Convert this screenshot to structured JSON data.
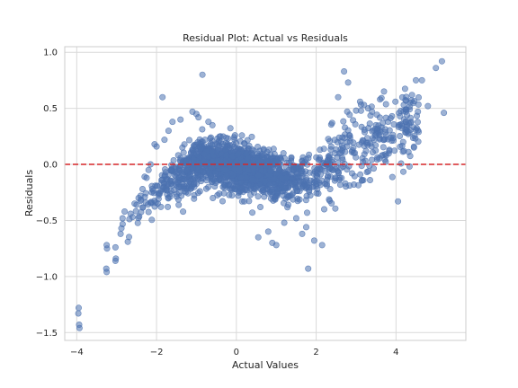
{
  "chart_data": {
    "type": "scatter",
    "title": "Residual Plot: Actual vs Residuals",
    "xlabel": "Actual Values",
    "ylabel": "Residuals",
    "xlim": [
      -4.3,
      5.75
    ],
    "ylim": [
      -1.57,
      1.05
    ],
    "xticks": [
      -4,
      -2,
      0,
      2,
      4
    ],
    "yticks": [
      -1.5,
      -1.0,
      -0.5,
      0.0,
      0.5,
      1.0
    ],
    "xtick_labels": [
      "−4",
      "−2",
      "0",
      "2",
      "4"
    ],
    "ytick_labels": [
      "−1.5",
      "−1.0",
      "−0.5",
      "0.0",
      "0.5",
      "1.0"
    ],
    "grid": true,
    "reference_line": {
      "y": 0.0,
      "style": "dashed",
      "color": "#d62728"
    },
    "point_color": "#4c72b0",
    "point_opacity": 0.55,
    "point_count_approx": 2000,
    "points": [
      [
        -3.95,
        -1.28
      ],
      [
        -3.96,
        -1.33
      ],
      [
        -3.94,
        -1.43
      ],
      [
        -3.93,
        -1.46
      ],
      [
        -3.25,
        -0.72
      ],
      [
        -3.24,
        -0.75
      ],
      [
        -3.26,
        -0.93
      ],
      [
        -3.25,
        -0.96
      ],
      [
        -3.03,
        -0.74
      ],
      [
        -3.02,
        -0.84
      ],
      [
        -3.03,
        -0.86
      ],
      [
        -2.9,
        -0.62
      ],
      [
        -2.88,
        -0.57
      ],
      [
        -2.85,
        -0.48
      ],
      [
        -2.8,
        -0.42
      ],
      [
        -2.72,
        -0.69
      ],
      [
        -2.65,
        -0.44
      ],
      [
        -2.6,
        -0.47
      ],
      [
        -2.55,
        -0.35
      ],
      [
        -2.5,
        -0.36
      ],
      [
        -2.45,
        -0.3
      ],
      [
        -2.4,
        -0.28
      ],
      [
        -2.35,
        -0.22
      ],
      [
        -2.3,
        -0.11
      ],
      [
        -2.25,
        -0.12
      ],
      [
        -2.2,
        -0.05
      ],
      [
        -2.15,
        0.0
      ],
      [
        -2.05,
        0.18
      ],
      [
        -2.0,
        0.16
      ],
      [
        -1.85,
        0.6
      ],
      [
        -1.8,
        0.22
      ],
      [
        -1.7,
        0.3
      ],
      [
        -1.6,
        0.38
      ],
      [
        -1.4,
        0.4
      ],
      [
        -1.1,
        0.47
      ],
      [
        -1.0,
        0.45
      ],
      [
        -0.95,
        0.42
      ],
      [
        -0.85,
        0.8
      ],
      [
        -0.7,
        0.38
      ],
      [
        -0.6,
        0.35
      ],
      [
        -0.4,
        0.25
      ],
      [
        -0.2,
        -0.18
      ],
      [
        0.05,
        -0.28
      ],
      [
        0.2,
        -0.33
      ],
      [
        0.4,
        -0.43
      ],
      [
        0.55,
        -0.65
      ],
      [
        0.6,
        -0.38
      ],
      [
        0.8,
        -0.6
      ],
      [
        0.9,
        -0.7
      ],
      [
        1.0,
        -0.72
      ],
      [
        1.2,
        -0.52
      ],
      [
        1.3,
        -0.36
      ],
      [
        1.5,
        -0.48
      ],
      [
        1.65,
        -0.62
      ],
      [
        1.75,
        -0.56
      ],
      [
        1.8,
        -0.93
      ],
      [
        1.95,
        -0.68
      ],
      [
        2.15,
        -0.72
      ],
      [
        2.2,
        -0.4
      ],
      [
        2.35,
        -0.22
      ],
      [
        2.4,
        0.37
      ],
      [
        2.55,
        0.6
      ],
      [
        2.7,
        0.83
      ],
      [
        2.8,
        0.73
      ],
      [
        2.9,
        -0.08
      ],
      [
        3.0,
        0.48
      ],
      [
        3.1,
        0.56
      ],
      [
        3.2,
        0.53
      ],
      [
        3.3,
        0.5
      ],
      [
        3.4,
        0.47
      ],
      [
        3.5,
        0.35
      ],
      [
        3.6,
        0.58
      ],
      [
        3.7,
        0.65
      ],
      [
        3.8,
        0.38
      ],
      [
        3.9,
        0.43
      ],
      [
        4.05,
        -0.33
      ],
      [
        4.1,
        0.43
      ],
      [
        4.2,
        0.12
      ],
      [
        4.25,
        0.47
      ],
      [
        4.35,
        0.55
      ],
      [
        4.4,
        0.62
      ],
      [
        4.45,
        0.15
      ],
      [
        4.5,
        0.75
      ],
      [
        4.55,
        0.47
      ],
      [
        4.65,
        0.75
      ],
      [
        4.8,
        0.52
      ],
      [
        5.0,
        0.86
      ],
      [
        5.15,
        0.92
      ],
      [
        5.2,
        0.46
      ]
    ]
  }
}
